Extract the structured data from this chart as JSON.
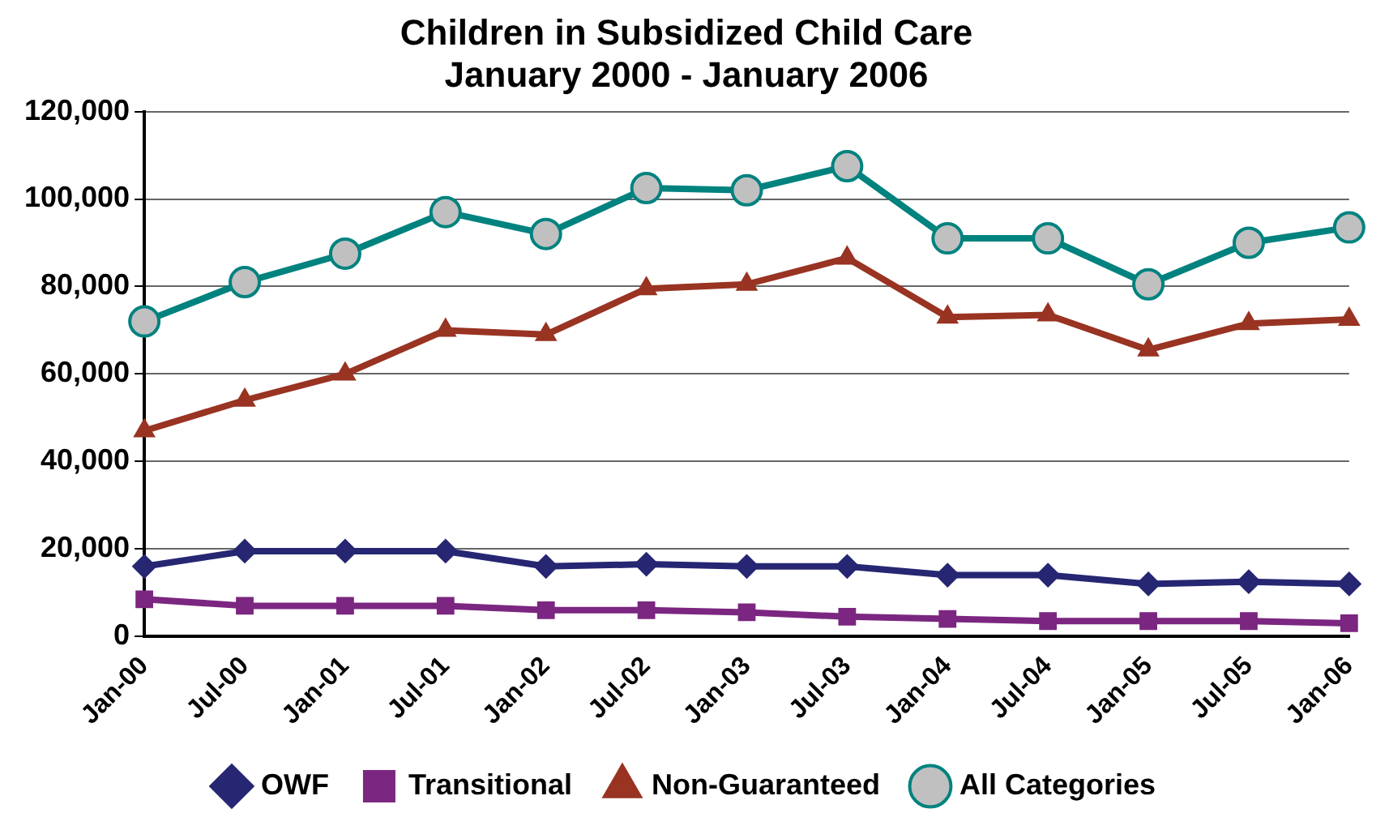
{
  "chart_data": {
    "type": "line",
    "title": "Children in Subsidized Child Care",
    "subtitle": "January 2000 - January 2006",
    "categories": [
      "Jan-00",
      "Jul-00",
      "Jan-01",
      "Jul-01",
      "Jan-02",
      "Jul-02",
      "Jan-03",
      "Jul-03",
      "Jan-04",
      "Jul-04",
      "Jan-05",
      "Jul-05",
      "Jan-06"
    ],
    "series": [
      {
        "name": "OWF",
        "color": "#262673",
        "marker": "diamond",
        "values": [
          16000,
          19500,
          19500,
          19500,
          16000,
          16500,
          16000,
          16000,
          14000,
          14000,
          12000,
          12500,
          12000
        ]
      },
      {
        "name": "Transitional",
        "color": "#7b2680",
        "marker": "square",
        "values": [
          8500,
          7000,
          7000,
          7000,
          6000,
          6000,
          5500,
          4500,
          4000,
          3500,
          3500,
          3500,
          3000
        ]
      },
      {
        "name": "Non-Guaranteed",
        "color": "#993322",
        "marker": "triangle",
        "values": [
          47000,
          54000,
          60000,
          70000,
          69000,
          79500,
          80500,
          86500,
          73000,
          73500,
          65500,
          71500,
          72500
        ]
      },
      {
        "name": "All Categories",
        "color": "#00827f",
        "marker": "circle",
        "values": [
          72000,
          81000,
          87500,
          97000,
          92000,
          102500,
          102000,
          107500,
          91000,
          91000,
          80500,
          90000,
          93500
        ]
      }
    ],
    "ylim": [
      0,
      120000
    ],
    "yticks": [
      0,
      {
        "value": 20000,
        "label": "20,000"
      },
      {
        "value": 40000,
        "label": "40,000"
      },
      {
        "value": 60000,
        "label": "60,000"
      },
      {
        "value": 80000,
        "label": "80,000"
      },
      {
        "value": 100000,
        "label": "100,000"
      },
      {
        "value": 120000,
        "label": "120,000"
      }
    ],
    "grid": "y",
    "legend": "bottom",
    "line_style": "solid"
  }
}
